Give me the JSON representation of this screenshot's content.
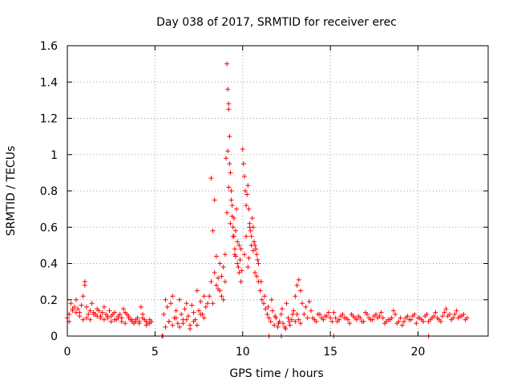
{
  "chart_data": {
    "type": "scatter",
    "title": "Day 038 of 2017, SRMTID for receiver erec",
    "xlabel": "GPS time / hours",
    "ylabel": "SRMTID / TECUs",
    "xlim": [
      0,
      24
    ],
    "ylim": [
      0,
      1.6
    ],
    "xticks": [
      0,
      5,
      10,
      15,
      20
    ],
    "xtick_labels": [
      "0",
      "5",
      "10",
      "15",
      "20"
    ],
    "yticks": [
      0,
      0.2,
      0.4,
      0.6,
      0.8,
      1.0,
      1.2,
      1.4,
      1.6
    ],
    "ytick_labels": [
      "0",
      "0.2",
      "0.4",
      "0.6",
      "0.8",
      "1",
      "1.2",
      "1.4",
      "1.6"
    ],
    "grid": true,
    "marker": "plus",
    "color": "#ff0000",
    "series": [
      {
        "name": "SRMTID",
        "x": [
          0.0,
          0.1,
          0.2,
          0.3,
          0.4,
          0.5,
          0.6,
          0.7,
          0.8,
          0.9,
          1.0,
          1.1,
          1.2,
          1.3,
          1.4,
          1.5,
          1.6,
          1.7,
          1.8,
          1.9,
          2.0,
          2.1,
          2.2,
          2.3,
          2.4,
          2.5,
          2.6,
          2.7,
          2.8,
          2.9,
          3.0,
          3.1,
          3.2,
          3.3,
          3.4,
          3.5,
          3.6,
          3.7,
          3.8,
          3.9,
          4.0,
          4.1,
          4.2,
          4.3,
          4.4,
          4.5,
          4.6,
          4.7,
          4.8,
          0.1,
          0.3,
          0.5,
          0.7,
          0.9,
          1.0,
          1.1,
          1.3,
          1.5,
          1.7,
          1.9,
          2.1,
          2.3,
          2.5,
          2.7,
          2.9,
          3.1,
          3.3,
          3.5,
          3.7,
          3.9,
          4.1,
          4.3,
          4.5,
          4.7,
          5.4,
          5.45,
          5.5,
          5.6,
          5.7,
          5.8,
          5.9,
          6.0,
          6.1,
          6.2,
          6.3,
          6.4,
          6.5,
          6.6,
          6.7,
          6.8,
          6.9,
          7.0,
          7.1,
          7.2,
          7.3,
          7.4,
          7.5,
          7.6,
          7.7,
          7.8,
          7.9,
          8.0,
          5.6,
          5.8,
          6.0,
          6.2,
          6.4,
          6.6,
          6.8,
          7.0,
          7.2,
          7.4,
          7.6,
          7.8,
          8.1,
          8.2,
          8.3,
          8.4,
          8.5,
          8.6,
          8.7,
          8.8,
          8.9,
          9.0,
          8.2,
          8.3,
          8.4,
          8.5,
          8.6,
          8.7,
          8.8,
          8.9,
          9.0,
          9.05,
          9.1,
          9.15,
          9.2,
          9.25,
          9.3,
          9.35,
          9.4,
          9.45,
          9.5,
          9.55,
          9.6,
          9.65,
          9.7,
          9.75,
          9.8,
          9.85,
          9.9,
          9.95,
          9.1,
          9.15,
          9.2,
          9.2,
          9.25,
          9.3,
          9.35,
          9.4,
          9.45,
          9.5,
          9.55,
          9.6,
          9.7,
          9.8,
          9.9,
          10.0,
          10.05,
          10.1,
          10.15,
          10.2,
          10.25,
          10.3,
          10.35,
          10.4,
          10.45,
          10.5,
          10.55,
          10.6,
          10.65,
          10.7,
          10.75,
          10.8,
          10.85,
          10.9,
          10.1,
          10.2,
          10.3,
          10.35,
          10.4,
          10.5,
          10.6,
          10.7,
          10.8,
          10.9,
          11.0,
          11.1,
          11.2,
          11.3,
          11.4,
          11.5,
          11.6,
          11.7,
          11.8,
          11.9,
          12.0,
          12.1,
          12.2,
          12.3,
          12.4,
          12.5,
          12.6,
          12.7,
          12.8,
          11.05,
          11.25,
          11.45,
          11.65,
          11.85,
          12.05,
          12.25,
          12.45,
          12.65,
          12.85,
          11.5,
          12.2,
          12.9,
          13.0,
          13.1,
          13.2,
          13.3,
          13.4,
          13.5,
          13.6,
          13.7,
          13.8,
          13.9,
          13.0,
          13.1,
          13.2,
          13.3,
          14.0,
          14.2,
          14.4,
          14.6,
          14.8,
          15.0,
          15.2,
          15.4,
          15.6,
          15.8,
          16.0,
          16.2,
          16.4,
          16.6,
          16.8,
          17.0,
          17.2,
          17.4,
          17.6,
          17.8,
          18.0,
          18.2,
          18.4,
          18.6,
          18.8,
          19.0,
          19.2,
          19.4,
          19.6,
          19.8,
          20.0,
          20.2,
          20.4,
          20.6,
          20.8,
          21.0,
          21.2,
          21.4,
          21.6,
          21.8,
          22.0,
          22.2,
          22.4,
          22.6,
          22.8,
          14.1,
          14.3,
          14.5,
          14.7,
          14.9,
          15.1,
          15.3,
          15.5,
          15.7,
          15.9,
          16.1,
          16.3,
          16.5,
          16.7,
          16.9,
          17.1,
          17.3,
          17.5,
          17.7,
          17.9,
          18.1,
          18.3,
          18.5,
          18.7,
          18.9,
          19.1,
          19.3,
          19.5,
          19.7,
          19.9,
          20.1,
          20.3,
          20.5,
          20.7,
          20.9,
          21.1,
          21.3,
          21.5,
          21.7,
          21.9,
          22.1,
          22.3,
          22.5,
          22.7,
          15.2,
          20.6
        ],
        "y": [
          0.1,
          0.12,
          0.18,
          0.14,
          0.16,
          0.2,
          0.15,
          0.13,
          0.17,
          0.22,
          0.28,
          0.16,
          0.12,
          0.14,
          0.18,
          0.13,
          0.12,
          0.15,
          0.14,
          0.11,
          0.13,
          0.16,
          0.12,
          0.1,
          0.14,
          0.11,
          0.12,
          0.13,
          0.09,
          0.11,
          0.12,
          0.1,
          0.15,
          0.13,
          0.12,
          0.1,
          0.09,
          0.08,
          0.07,
          0.09,
          0.1,
          0.08,
          0.16,
          0.12,
          0.09,
          0.08,
          0.07,
          0.09,
          0.08,
          0.08,
          0.15,
          0.13,
          0.11,
          0.09,
          0.3,
          0.1,
          0.09,
          0.12,
          0.11,
          0.1,
          0.09,
          0.11,
          0.08,
          0.09,
          0.1,
          0.08,
          0.07,
          0.11,
          0.09,
          0.08,
          0.07,
          0.1,
          0.06,
          0.07,
          0.0,
          0.0,
          0.12,
          0.2,
          0.16,
          0.08,
          0.18,
          0.22,
          0.1,
          0.14,
          0.07,
          0.2,
          0.12,
          0.09,
          0.15,
          0.18,
          0.11,
          0.06,
          0.17,
          0.13,
          0.09,
          0.25,
          0.14,
          0.19,
          0.12,
          0.22,
          0.16,
          0.18,
          0.05,
          0.08,
          0.06,
          0.1,
          0.05,
          0.07,
          0.09,
          0.04,
          0.08,
          0.06,
          0.12,
          0.1,
          0.22,
          0.3,
          0.18,
          0.35,
          0.28,
          0.26,
          0.4,
          0.33,
          0.38,
          0.45,
          0.87,
          0.58,
          0.75,
          0.44,
          0.32,
          0.25,
          0.22,
          0.2,
          0.3,
          0.98,
          0.68,
          1.02,
          0.82,
          0.95,
          0.62,
          0.8,
          0.72,
          0.55,
          0.65,
          0.45,
          0.58,
          0.7,
          0.52,
          0.38,
          0.5,
          0.42,
          0.48,
          0.36,
          1.5,
          1.36,
          1.28,
          1.25,
          1.1,
          0.9,
          0.75,
          0.66,
          0.6,
          0.55,
          0.48,
          0.44,
          0.4,
          0.35,
          0.3,
          1.03,
          0.95,
          0.88,
          0.8,
          0.72,
          0.78,
          0.83,
          0.7,
          0.62,
          0.58,
          0.55,
          0.65,
          0.6,
          0.52,
          0.5,
          0.48,
          0.45,
          0.42,
          0.4,
          0.45,
          0.55,
          0.38,
          0.43,
          0.6,
          0.5,
          0.47,
          0.35,
          0.33,
          0.3,
          0.25,
          0.2,
          0.18,
          0.15,
          0.12,
          0.1,
          0.08,
          0.14,
          0.06,
          0.1,
          0.05,
          0.08,
          0.12,
          0.07,
          0.05,
          0.18,
          0.1,
          0.06,
          0.09,
          0.3,
          0.22,
          0.16,
          0.2,
          0.11,
          0.07,
          0.15,
          0.04,
          0.08,
          0.12,
          0.0,
          0.0,
          0.14,
          0.22,
          0.28,
          0.31,
          0.25,
          0.18,
          0.12,
          0.16,
          0.1,
          0.19,
          0.14,
          0.08,
          0.12,
          0.09,
          0.07,
          0.1,
          0.08,
          0.12,
          0.09,
          0.11,
          0.1,
          0.13,
          0.08,
          0.11,
          0.1,
          0.09,
          0.12,
          0.1,
          0.11,
          0.08,
          0.13,
          0.1,
          0.09,
          0.12,
          0.11,
          0.1,
          0.08,
          0.09,
          0.14,
          0.07,
          0.1,
          0.08,
          0.11,
          0.09,
          0.12,
          0.1,
          0.09,
          0.11,
          0.08,
          0.1,
          0.13,
          0.09,
          0.11,
          0.15,
          0.12,
          0.1,
          0.14,
          0.11,
          0.12,
          0.1,
          0.09,
          0.12,
          0.1,
          0.11,
          0.13,
          0.08,
          0.1,
          0.09,
          0.12,
          0.1,
          0.07,
          0.11,
          0.09,
          0.1,
          0.08,
          0.12,
          0.09,
          0.11,
          0.1,
          0.13,
          0.07,
          0.09,
          0.1,
          0.12,
          0.08,
          0.06,
          0.1,
          0.09,
          0.11,
          0.07,
          0.1,
          0.08,
          0.12,
          0.09,
          0.11,
          0.1,
          0.08,
          0.13,
          0.11,
          0.09,
          0.12,
          0.1,
          0.11,
          0.09,
          0.0,
          0.0
        ]
      }
    ]
  }
}
